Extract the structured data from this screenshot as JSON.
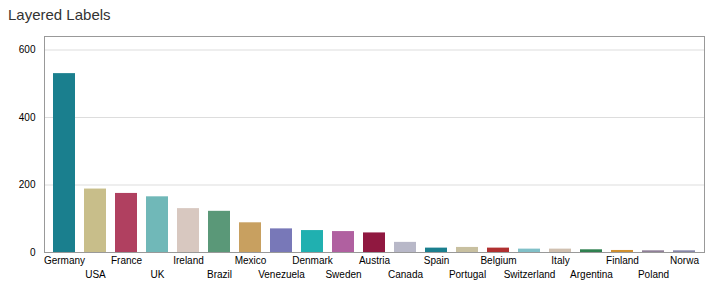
{
  "chart_data": {
    "type": "bar",
    "title": "Layered Labels",
    "categories": [
      "Germany",
      "USA",
      "France",
      "UK",
      "Ireland",
      "Brazil",
      "Mexico",
      "Venezuela",
      "Denmark",
      "Sweden",
      "Austria",
      "Canada",
      "Spain",
      "Portugal",
      "Belgium",
      "Switzerland",
      "Italy",
      "Argentina",
      "Finland",
      "Poland",
      "Norwa"
    ],
    "values": [
      530,
      188,
      175,
      165,
      130,
      122,
      88,
      70,
      65,
      62,
      58,
      30,
      13,
      15,
      13,
      10,
      10,
      8,
      6,
      5,
      5
    ],
    "colors": [
      "#1a7f8e",
      "#c8be8a",
      "#b04060",
      "#70b8b8",
      "#d8c8c0",
      "#5a9878",
      "#c8a060",
      "#7878b8",
      "#20b0b0",
      "#b060a0",
      "#901840",
      "#b8b8c8",
      "#1a7f8e",
      "#c8c0a0",
      "#b03030",
      "#80c0c8",
      "#d0c0b0",
      "#308050",
      "#d09030",
      "#908098",
      "#8888a8"
    ],
    "ylim": [
      0,
      640
    ],
    "yticks": [
      0,
      200,
      400,
      600
    ],
    "grid": true
  }
}
